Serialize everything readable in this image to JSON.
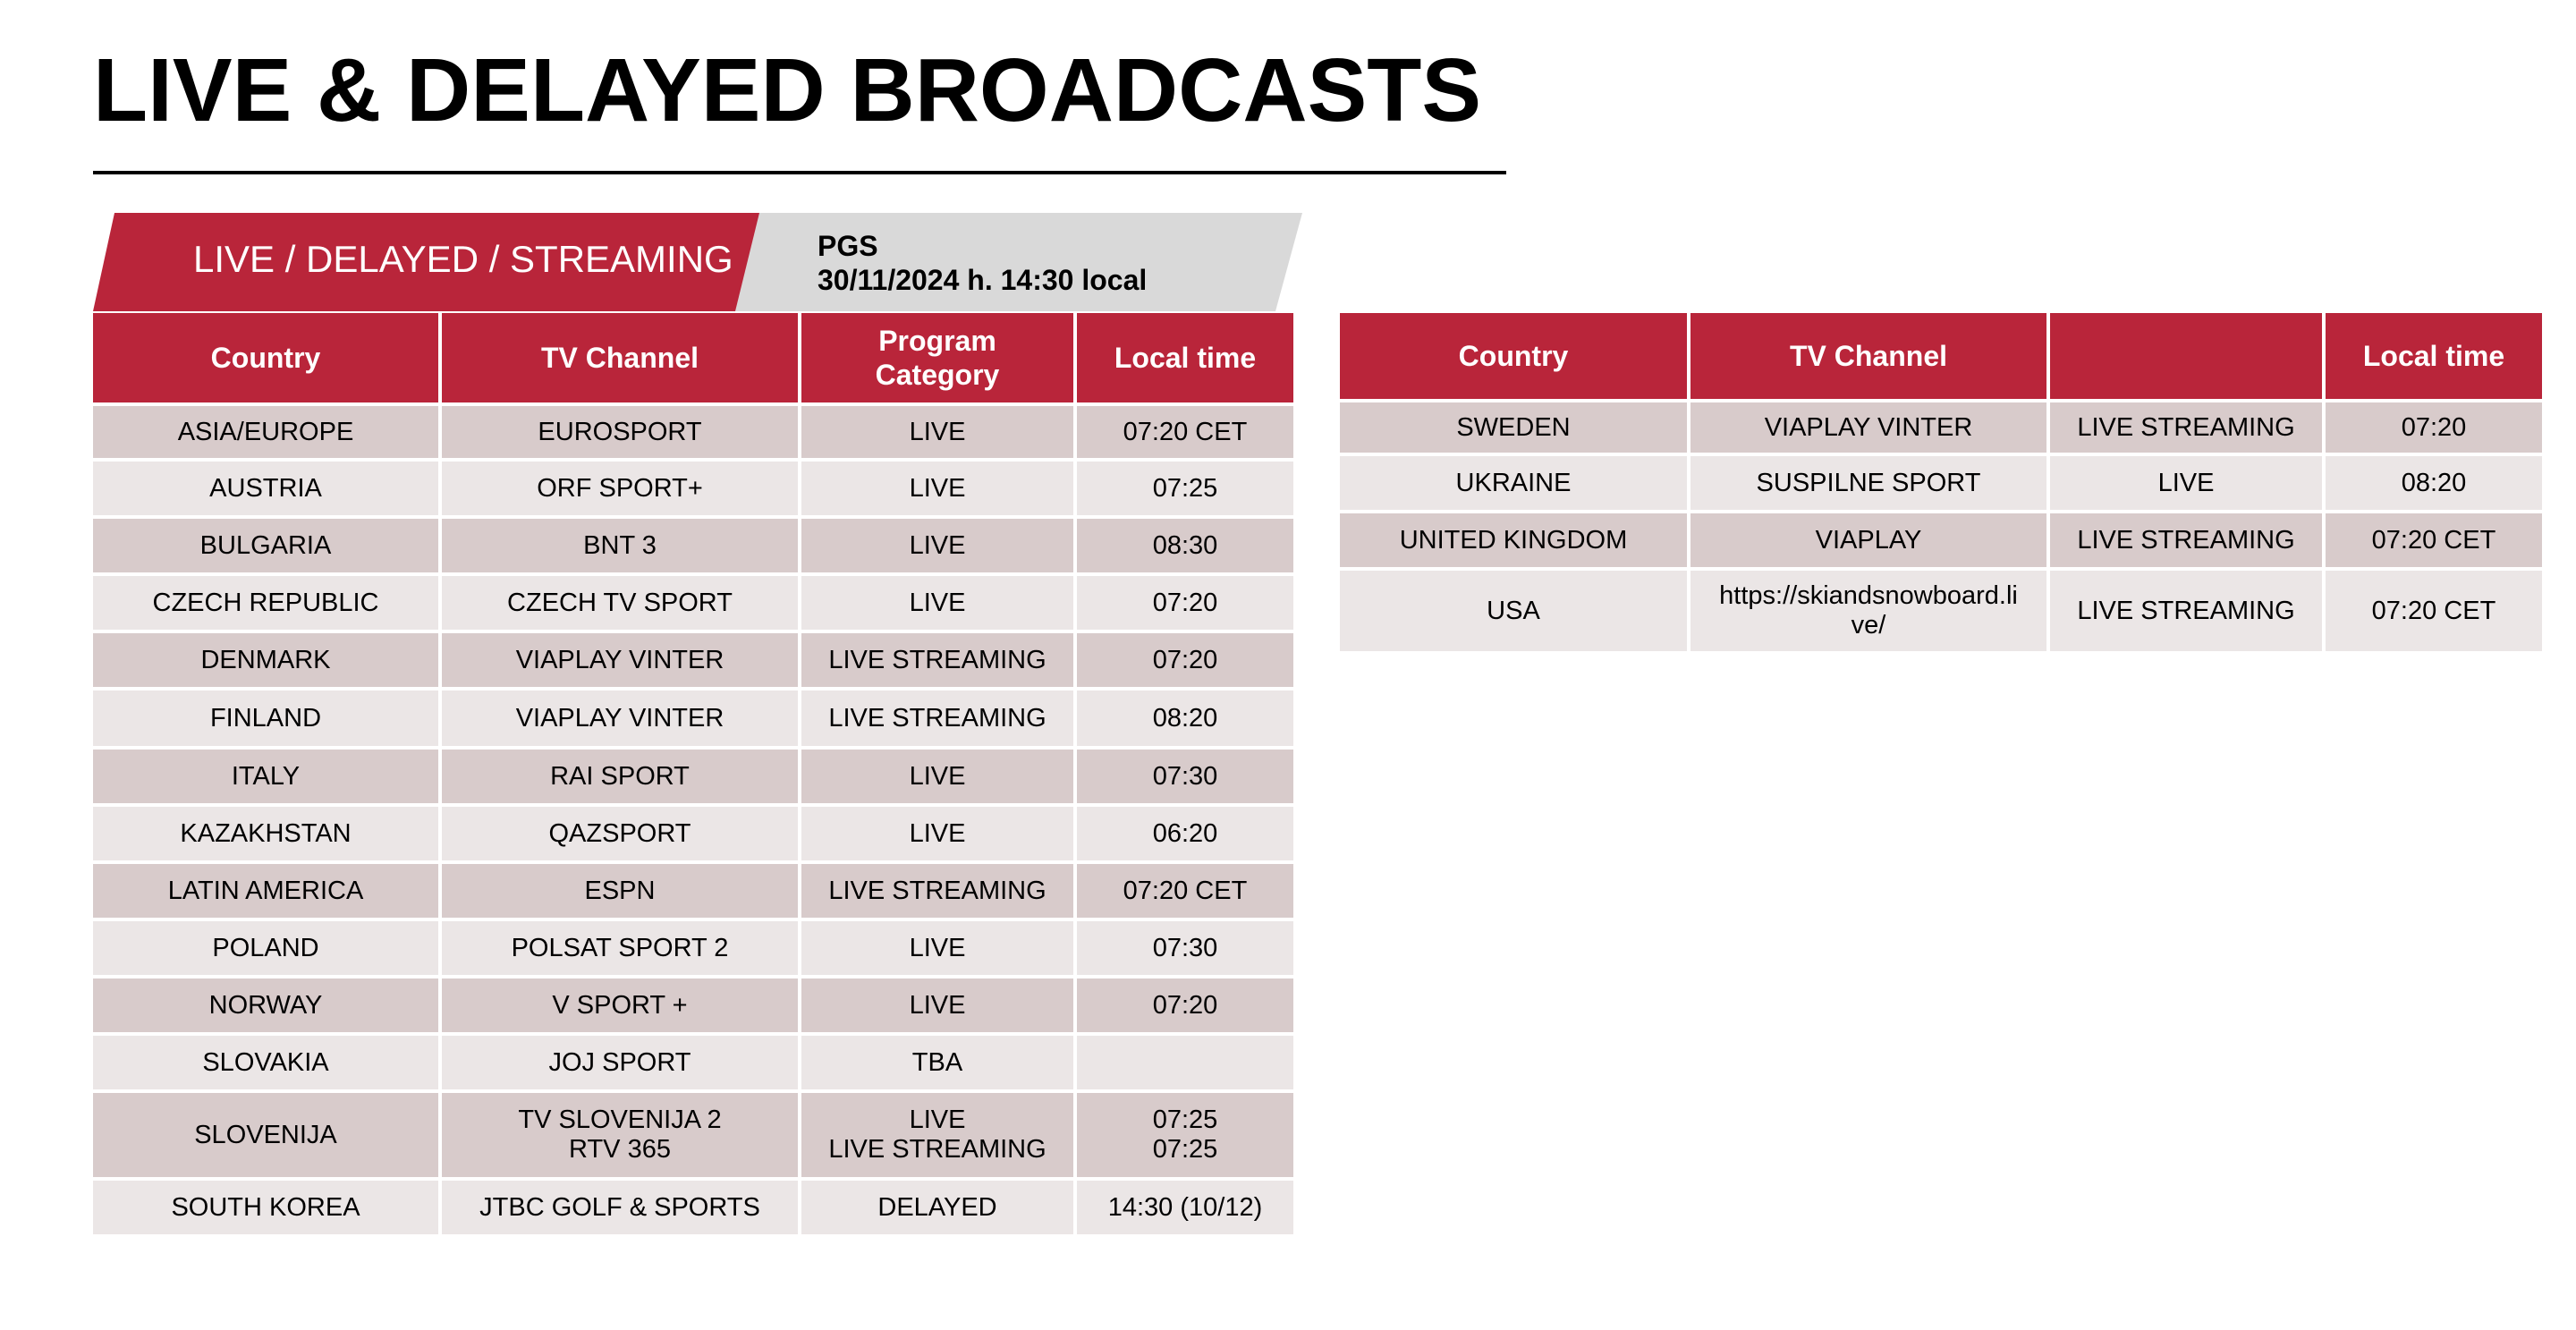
{
  "title": "LIVE & DELAYED BROADCASTS",
  "banner": {
    "label": "LIVE / DELAYED / STREAMING",
    "pgs_line1": "PGS",
    "pgs_line2": "30/11/2024 h. 14:30 local"
  },
  "colors": {
    "accent_red": "#b9253a",
    "row_dark": "#d8cbcb",
    "row_light": "#ebe6e6",
    "banner_gray": "#d9d9d9"
  },
  "left_table": {
    "headers": [
      "Country",
      "TV Channel",
      "Program\nCategory",
      "Local time"
    ],
    "rows": [
      [
        "ASIA/EUROPE",
        "EUROSPORT",
        "LIVE",
        "07:20 CET"
      ],
      [
        "AUSTRIA",
        "ORF SPORT+",
        "LIVE",
        "07:25"
      ],
      [
        "BULGARIA",
        "BNT 3",
        "LIVE",
        "08:30"
      ],
      [
        "CZECH REPUBLIC",
        "CZECH TV SPORT",
        "LIVE",
        "07:20"
      ],
      [
        "DENMARK",
        "VIAPLAY VINTER",
        "LIVE STREAMING",
        "07:20"
      ],
      [
        "FINLAND",
        "VIAPLAY VINTER",
        "LIVE STREAMING",
        "08:20"
      ],
      [
        "ITALY",
        "RAI SPORT",
        "LIVE",
        "07:30"
      ],
      [
        "KAZAKHSTAN",
        "QAZSPORT",
        "LIVE",
        "06:20"
      ],
      [
        "LATIN AMERICA",
        "ESPN",
        "LIVE STREAMING",
        "07:20 CET"
      ],
      [
        "POLAND",
        "POLSAT SPORT 2",
        "LIVE",
        "07:30"
      ],
      [
        "NORWAY",
        "V SPORT +",
        "LIVE",
        "07:20"
      ],
      [
        "SLOVAKIA",
        "JOJ SPORT",
        "TBA",
        ""
      ],
      [
        "SLOVENIJA",
        "TV SLOVENIJA 2\nRTV 365",
        "LIVE\nLIVE STREAMING",
        "07:25\n07:25"
      ],
      [
        "SOUTH KOREA",
        "JTBC GOLF & SPORTS",
        "DELAYED",
        "14:30 (10/12)"
      ]
    ]
  },
  "right_table": {
    "headers": [
      "Country",
      "TV Channel",
      "",
      "Local time"
    ],
    "rows": [
      [
        "SWEDEN",
        "VIAPLAY VINTER",
        "LIVE STREAMING",
        "07:20"
      ],
      [
        "UKRAINE",
        "SUSPILNE SPORT",
        "LIVE",
        "08:20"
      ],
      [
        "UNITED KINGDOM",
        "VIAPLAY",
        "LIVE STREAMING",
        "07:20 CET"
      ],
      [
        "USA",
        "https://skiandsnowboard.li\nve/",
        "LIVE STREAMING",
        "07:20 CET"
      ]
    ]
  }
}
